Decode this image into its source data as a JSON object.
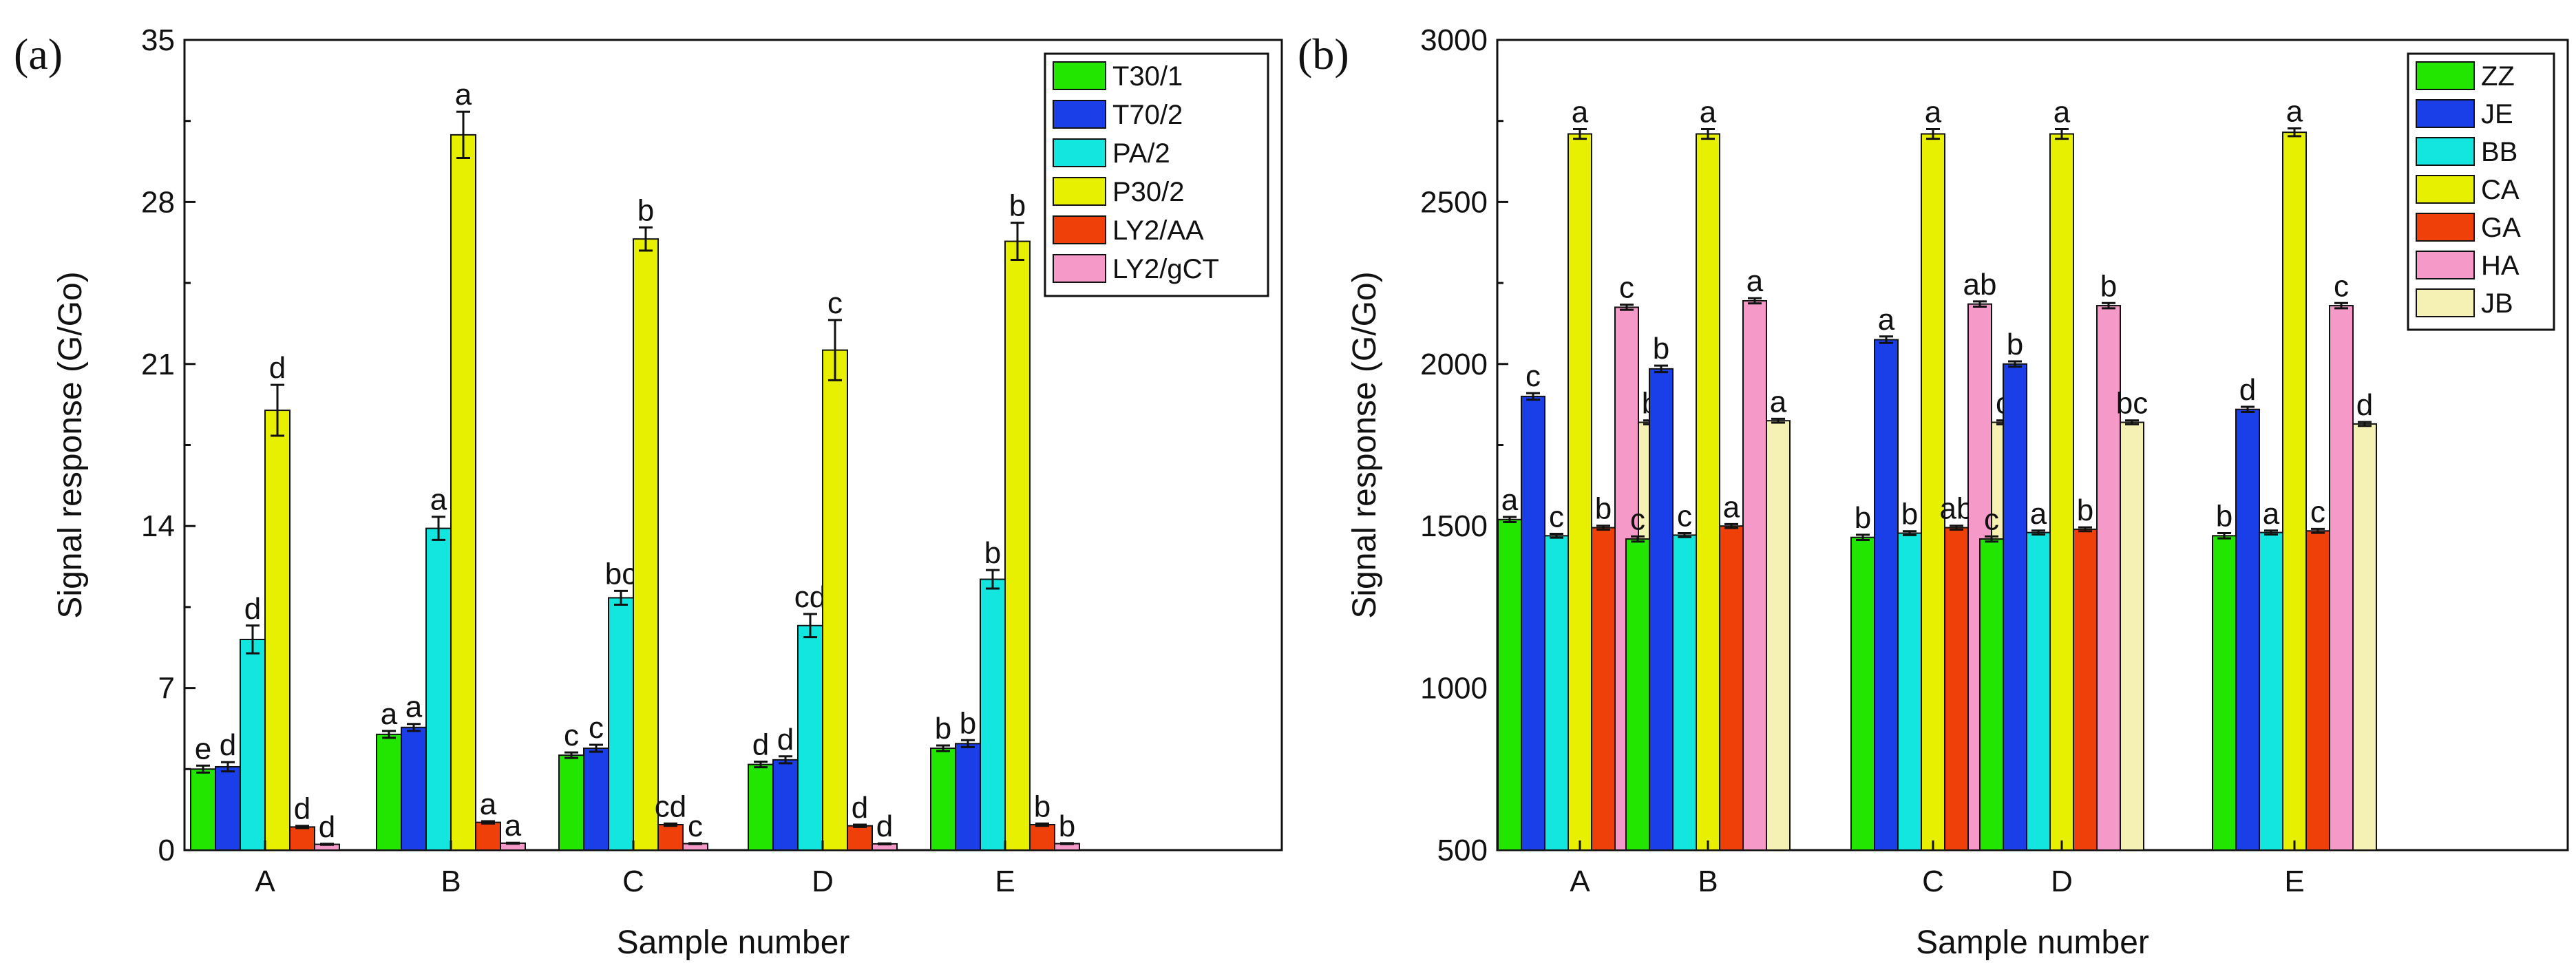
{
  "chart_data": [
    {
      "type": "bar",
      "panel_label": "(a)",
      "xlabel": "Sample number",
      "ylabel": "Signal response (G/Go)",
      "ylim": [
        0,
        35
      ],
      "yticks": [
        0,
        7,
        14,
        21,
        28,
        35
      ],
      "categories": [
        "A",
        "B",
        "C",
        "D",
        "E"
      ],
      "legend_position": "top-right",
      "series": [
        {
          "name": "T30/1",
          "color": "#22e600",
          "values": [
            3.5,
            5.0,
            4.1,
            3.7,
            4.4
          ],
          "errors": [
            0.15,
            0.15,
            0.12,
            0.12,
            0.12
          ],
          "letters": [
            "e",
            "a",
            "c",
            "d",
            "b"
          ]
        },
        {
          "name": "T70/2",
          "color": "#1a3fe8",
          "values": [
            3.6,
            5.3,
            4.4,
            3.9,
            4.6
          ],
          "errors": [
            0.2,
            0.15,
            0.15,
            0.15,
            0.15
          ],
          "letters": [
            "d",
            "a",
            "c",
            "d",
            "b"
          ]
        },
        {
          "name": "PA/2",
          "color": "#12e6de",
          "values": [
            9.1,
            13.9,
            10.9,
            9.7,
            11.7
          ],
          "errors": [
            0.6,
            0.5,
            0.3,
            0.5,
            0.4
          ],
          "letters": [
            "d",
            "a",
            "bc",
            "cd",
            "b"
          ]
        },
        {
          "name": "P30/2",
          "color": "#e6f000",
          "values": [
            19.0,
            30.9,
            26.4,
            21.6,
            26.3
          ],
          "errors": [
            1.1,
            1.0,
            0.5,
            1.3,
            0.8
          ],
          "letters": [
            "d",
            "a",
            "b",
            "c",
            "b"
          ]
        },
        {
          "name": "LY2/AA",
          "color": "#f0400a",
          "values": [
            1.0,
            1.2,
            1.1,
            1.05,
            1.1
          ],
          "errors": [
            0.05,
            0.05,
            0.05,
            0.05,
            0.05
          ],
          "letters": [
            "d",
            "a",
            "cd",
            "d",
            "b"
          ]
        },
        {
          "name": "LY2/gCT",
          "color": "#f59ac8",
          "values": [
            0.25,
            0.3,
            0.28,
            0.27,
            0.28
          ],
          "errors": [
            0.02,
            0.02,
            0.02,
            0.02,
            0.02
          ],
          "letters": [
            "d",
            "a",
            "c",
            "d",
            "b"
          ]
        }
      ]
    },
    {
      "type": "bar",
      "panel_label": "(b)",
      "xlabel": "Sample number",
      "ylabel": "Signal response (G/Go)",
      "ylim": [
        500,
        3000
      ],
      "yticks": [
        500,
        1000,
        1500,
        2000,
        2500,
        3000
      ],
      "categories": [
        "A",
        "B",
        "C",
        "D",
        "E"
      ],
      "legend_position": "top-right",
      "series": [
        {
          "name": "ZZ",
          "color": "#22e600",
          "values": [
            1520,
            1460,
            1465,
            1460,
            1470
          ],
          "errors": [
            8,
            8,
            8,
            8,
            8
          ],
          "letters": [
            "a",
            "c",
            "b",
            "c",
            "b"
          ]
        },
        {
          "name": "JE",
          "color": "#1a3fe8",
          "values": [
            1900,
            1985,
            2075,
            2000,
            1860
          ],
          "errors": [
            10,
            10,
            10,
            8,
            8
          ],
          "letters": [
            "c",
            "b",
            "a",
            "b",
            "d"
          ]
        },
        {
          "name": "BB",
          "color": "#12e6de",
          "values": [
            1470,
            1472,
            1478,
            1480,
            1480
          ],
          "errors": [
            6,
            6,
            6,
            6,
            6
          ],
          "letters": [
            "c",
            "c",
            "b",
            "a",
            "a"
          ]
        },
        {
          "name": "CA",
          "color": "#e6f000",
          "values": [
            2710,
            2710,
            2710,
            2710,
            2715
          ],
          "errors": [
            15,
            15,
            15,
            15,
            12
          ],
          "letters": [
            "a",
            "a",
            "a",
            "a",
            "a"
          ]
        },
        {
          "name": "GA",
          "color": "#f0400a",
          "values": [
            1495,
            1500,
            1495,
            1490,
            1485
          ],
          "errors": [
            6,
            6,
            6,
            6,
            6
          ],
          "letters": [
            "b",
            "a",
            "ab",
            "b",
            "c"
          ]
        },
        {
          "name": "HA",
          "color": "#f59ac8",
          "values": [
            2175,
            2195,
            2185,
            2180,
            2180
          ],
          "errors": [
            8,
            8,
            8,
            8,
            8
          ],
          "letters": [
            "c",
            "a",
            "ab",
            "b",
            "c"
          ]
        },
        {
          "name": "JB",
          "color": "#f5f0b4",
          "values": [
            1820,
            1825,
            1820,
            1820,
            1815
          ],
          "errors": [
            6,
            6,
            6,
            6,
            6
          ],
          "letters": [
            "b",
            "a",
            "c",
            "bc",
            "d"
          ]
        }
      ]
    }
  ]
}
